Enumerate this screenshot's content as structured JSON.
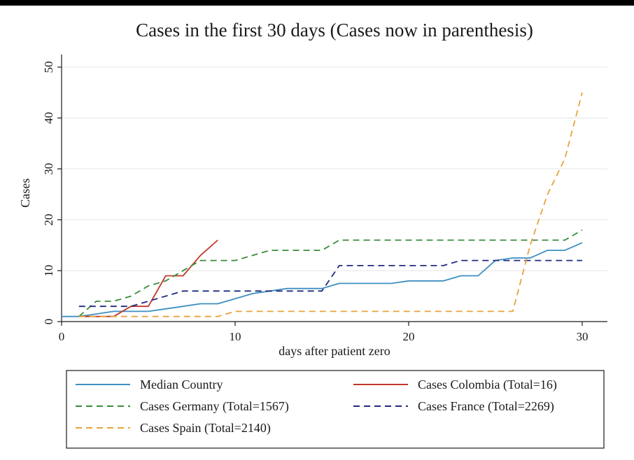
{
  "chart_data": {
    "type": "line",
    "title": "Cases in the first 30 days (Cases now in parenthesis)",
    "xlabel": "days after patient zero",
    "ylabel": "Cases",
    "xlim": [
      0,
      31.5
    ],
    "ylim": [
      0,
      52
    ],
    "xticks": [
      0,
      10,
      20,
      30
    ],
    "yticks": [
      0,
      10,
      20,
      30,
      40,
      50
    ],
    "grid": true,
    "legend": "bottom",
    "series": [
      {
        "name": "Median Country",
        "color": "#3d8fc0",
        "dash": "solid",
        "x": [
          0,
          1,
          2,
          3,
          4,
          5,
          6,
          7,
          8,
          9,
          10,
          11,
          12,
          13,
          14,
          15,
          16,
          17,
          18,
          19,
          20,
          21,
          22,
          23,
          24,
          25,
          26,
          27,
          28,
          29,
          30
        ],
        "y": [
          1,
          1,
          1.5,
          2,
          2,
          2,
          2.5,
          3,
          3.5,
          3.5,
          4.5,
          5.5,
          6,
          6.5,
          6.5,
          6.5,
          7.5,
          7.5,
          7.5,
          7.5,
          8,
          8,
          8,
          9,
          9,
          12,
          12.5,
          12.5,
          14,
          14,
          15.5
        ]
      },
      {
        "name": "Cases Colombia (Total=16)",
        "color": "#c0392b",
        "dash": "solid",
        "x": [
          1,
          2,
          3,
          4,
          5,
          6,
          7,
          8,
          9
        ],
        "y": [
          1,
          1,
          1,
          3,
          3,
          9,
          9,
          13,
          16
        ]
      },
      {
        "name": "Cases Germany (Total=1567)",
        "color": "#3a8a3a",
        "dash": "dashed",
        "x": [
          1,
          2,
          3,
          4,
          5,
          6,
          7,
          8,
          9,
          10,
          11,
          12,
          13,
          14,
          15,
          16,
          17,
          18,
          19,
          20,
          21,
          22,
          23,
          24,
          25,
          26,
          27,
          28,
          29,
          30
        ],
        "y": [
          1,
          4,
          4,
          5,
          7,
          8,
          10,
          12,
          12,
          12,
          13,
          14,
          14,
          14,
          14,
          16,
          16,
          16,
          16,
          16,
          16,
          16,
          16,
          16,
          16,
          16,
          16,
          16,
          16,
          18
        ]
      },
      {
        "name": "Cases France (Total=2269)",
        "color": "#1f2a80",
        "dash": "dashed",
        "x": [
          1,
          2,
          3,
          4,
          5,
          6,
          7,
          8,
          9,
          10,
          11,
          12,
          13,
          14,
          15,
          16,
          17,
          18,
          19,
          20,
          21,
          22,
          23,
          24,
          25,
          26,
          27,
          28,
          29,
          30
        ],
        "y": [
          3,
          3,
          3,
          3,
          4,
          5,
          6,
          6,
          6,
          6,
          6,
          6,
          6,
          6,
          6,
          11,
          11,
          11,
          11,
          11,
          11,
          11,
          12,
          12,
          12,
          12,
          12,
          12,
          12,
          12
        ]
      },
      {
        "name": "Cases Spain (Total=2140)",
        "color": "#e8a33d",
        "dash": "dashed",
        "x": [
          1,
          2,
          3,
          4,
          5,
          6,
          7,
          8,
          9,
          10,
          11,
          12,
          13,
          14,
          15,
          16,
          17,
          18,
          19,
          20,
          21,
          22,
          23,
          24,
          25,
          26,
          27,
          28,
          29,
          30
        ],
        "y": [
          1,
          1,
          1,
          1,
          1,
          1,
          1,
          1,
          1,
          2,
          2,
          2,
          2,
          2,
          2,
          2,
          2,
          2,
          2,
          2,
          2,
          2,
          2,
          2,
          2,
          2,
          15,
          25,
          32,
          45
        ]
      }
    ],
    "legend_order": [
      0,
      1,
      2,
      3,
      4
    ]
  }
}
